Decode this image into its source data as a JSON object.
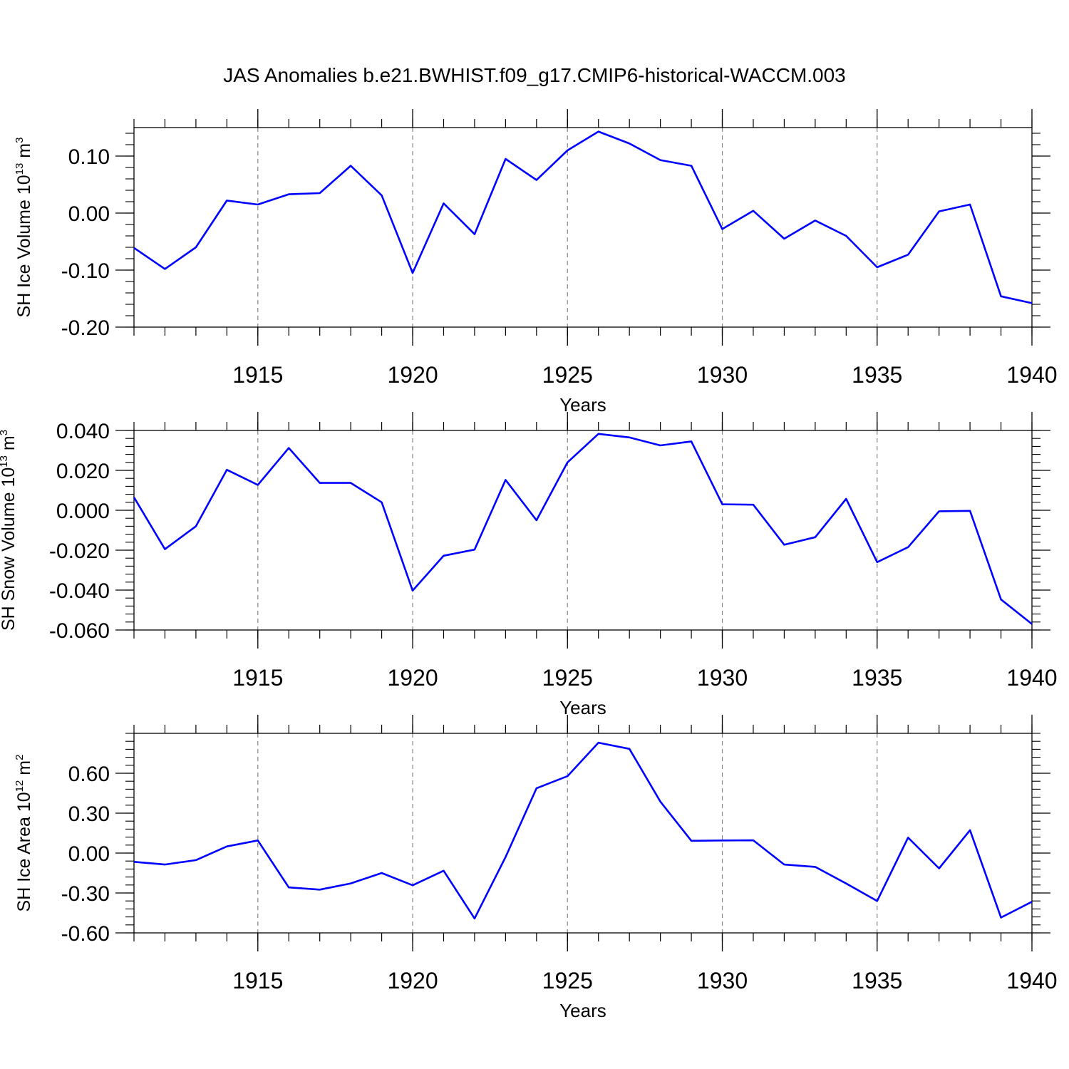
{
  "title": "JAS Anomalies b.e21.BWHIST.f09_g17.CMIP6-historical-WACCM.003",
  "line_color": "#0000ff",
  "chart_data": [
    {
      "type": "line",
      "ylabel": "SH Ice Volume 10",
      "ylabel_exp": "13",
      "ylabel_unit": " m",
      "ylabel_unit_exp": "3",
      "xlabel": "Years",
      "xlim": [
        1911,
        1940
      ],
      "ylim": [
        -0.2,
        0.15
      ],
      "xticks": [
        1915,
        1920,
        1925,
        1930,
        1935,
        1940
      ],
      "yticks": [
        -0.2,
        -0.1,
        0.0,
        0.1
      ],
      "ytick_labels": [
        "-0.20",
        "-0.10",
        "0.00",
        "0.10"
      ],
      "grid": "vertical dashed at labeled years",
      "series": [
        {
          "x": [
            1911,
            1912,
            1913,
            1914,
            1915,
            1916,
            1917,
            1918,
            1919,
            1920,
            1921,
            1922,
            1923,
            1924,
            1925,
            1926,
            1927,
            1928,
            1929,
            1930,
            1931,
            1932,
            1933,
            1934,
            1935,
            1936,
            1937,
            1938,
            1939,
            1940
          ],
          "values": [
            -0.061,
            -0.098,
            -0.06,
            0.022,
            0.015,
            0.033,
            0.035,
            0.083,
            0.031,
            -0.105,
            0.017,
            -0.037,
            0.095,
            0.058,
            0.11,
            0.143,
            0.122,
            0.093,
            0.083,
            -0.028,
            0.004,
            -0.045,
            -0.013,
            -0.04,
            -0.095,
            -0.073,
            0.003,
            0.015,
            -0.146,
            -0.158
          ]
        }
      ]
    },
    {
      "type": "line",
      "ylabel": "SH Snow Volume 10",
      "ylabel_exp": "13",
      "ylabel_unit": " m",
      "ylabel_unit_exp": "3",
      "xlabel": "Years",
      "xlim": [
        1911,
        1940
      ],
      "ylim": [
        -0.06,
        0.04
      ],
      "xticks": [
        1915,
        1920,
        1925,
        1930,
        1935,
        1940
      ],
      "yticks": [
        -0.06,
        -0.04,
        -0.02,
        0.0,
        0.02,
        0.04
      ],
      "ytick_labels": [
        "-0.060",
        "-0.040",
        "-0.020",
        "0.000",
        "0.020",
        "0.040"
      ],
      "grid": "vertical dashed at labeled years",
      "series": [
        {
          "x": [
            1911,
            1912,
            1913,
            1914,
            1915,
            1916,
            1917,
            1918,
            1919,
            1920,
            1921,
            1922,
            1923,
            1924,
            1925,
            1926,
            1927,
            1928,
            1929,
            1930,
            1931,
            1932,
            1933,
            1934,
            1935,
            1936,
            1937,
            1938,
            1939,
            1940
          ],
          "values": [
            0.0065,
            -0.0195,
            -0.008,
            0.0203,
            0.0127,
            0.0312,
            0.0137,
            0.0137,
            0.004,
            -0.0403,
            -0.0228,
            -0.0197,
            0.0152,
            -0.005,
            0.024,
            0.0383,
            0.0365,
            0.0325,
            0.0345,
            0.003,
            0.0028,
            -0.0173,
            -0.0135,
            0.0057,
            -0.026,
            -0.0185,
            -0.0005,
            -0.0003,
            -0.0447,
            -0.057
          ]
        }
      ]
    },
    {
      "type": "line",
      "ylabel": "SH Ice Area 10",
      "ylabel_exp": "12",
      "ylabel_unit": " m",
      "ylabel_unit_exp": "2",
      "xlabel": "Years",
      "xlim": [
        1911,
        1940
      ],
      "ylim": [
        -0.6,
        0.9
      ],
      "xticks": [
        1915,
        1920,
        1925,
        1930,
        1935,
        1940
      ],
      "yticks": [
        -0.6,
        -0.3,
        0.0,
        0.3,
        0.6
      ],
      "ytick_labels": [
        "-0.60",
        "-0.30",
        "0.00",
        "0.30",
        "0.60"
      ],
      "grid": "vertical dashed at labeled years",
      "series": [
        {
          "x": [
            1911,
            1912,
            1913,
            1914,
            1915,
            1916,
            1917,
            1918,
            1919,
            1920,
            1921,
            1922,
            1923,
            1924,
            1925,
            1926,
            1927,
            1928,
            1929,
            1930,
            1931,
            1932,
            1933,
            1934,
            1935,
            1936,
            1937,
            1938,
            1939,
            1940
          ],
          "values": [
            -0.066,
            -0.086,
            -0.053,
            0.05,
            0.095,
            -0.258,
            -0.275,
            -0.228,
            -0.15,
            -0.242,
            -0.133,
            -0.492,
            -0.03,
            0.487,
            0.578,
            0.83,
            0.783,
            0.387,
            0.092,
            0.095,
            0.096,
            -0.086,
            -0.104,
            -0.229,
            -0.36,
            0.116,
            -0.115,
            0.172,
            -0.485,
            -0.366
          ]
        }
      ]
    }
  ]
}
